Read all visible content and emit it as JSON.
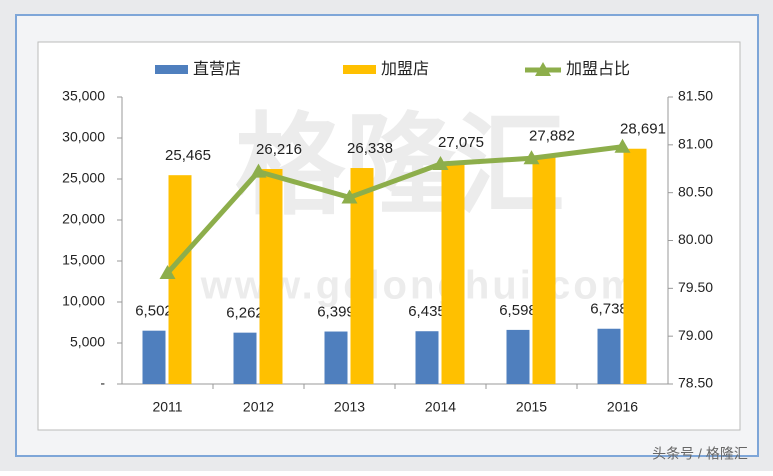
{
  "chart_data": {
    "type": "bar_line",
    "categories": [
      "2011",
      "2012",
      "2013",
      "2014",
      "2015",
      "2016"
    ],
    "series": [
      {
        "name": "直营店",
        "color": "#4f7fbe",
        "type": "bar",
        "values": [
          6502,
          6262,
          6399,
          6435,
          6598,
          6738
        ],
        "value_labels": [
          "6,502",
          "6,262",
          "6,399",
          "6,435",
          "6,598",
          "6,738"
        ]
      },
      {
        "name": "加盟店",
        "color": "#ffc000",
        "type": "bar",
        "values": [
          25465,
          26216,
          26338,
          27075,
          27882,
          28691
        ],
        "value_labels": [
          "25,465",
          "26,216",
          "26,338",
          "27,075",
          "27,882",
          "28,691"
        ]
      },
      {
        "name": "加盟占比",
        "color": "#8dae4b",
        "type": "line",
        "axis": "y2",
        "values": [
          79.66,
          80.72,
          80.45,
          80.8,
          80.86,
          80.98
        ]
      }
    ],
    "ylim": [
      0,
      35000
    ],
    "yticks": [
      {
        "value": 0,
        "label": "-"
      },
      {
        "value": 5000,
        "label": "5,000"
      },
      {
        "value": 10000,
        "label": "10,000"
      },
      {
        "value": 15000,
        "label": "15,000"
      },
      {
        "value": 20000,
        "label": "20,000"
      },
      {
        "value": 25000,
        "label": "25,000"
      },
      {
        "value": 30000,
        "label": "30,000"
      },
      {
        "value": 35000,
        "label": "35,000"
      }
    ],
    "y2lim": [
      78.5,
      81.5
    ],
    "y2ticks": [
      {
        "value": 78.5,
        "label": "78.50"
      },
      {
        "value": 79,
        "label": "79.00"
      },
      {
        "value": 79.5,
        "label": "79.50"
      },
      {
        "value": 80,
        "label": "80.00"
      },
      {
        "value": 80.5,
        "label": "80.50"
      },
      {
        "value": 81,
        "label": "81.00"
      },
      {
        "value": 81.5,
        "label": "81.50"
      }
    ],
    "legend": "top"
  },
  "watermark": {
    "logo": "格隆汇",
    "url": "www.gelonghui.com",
    "credit": "头条号 / 格隆汇"
  }
}
